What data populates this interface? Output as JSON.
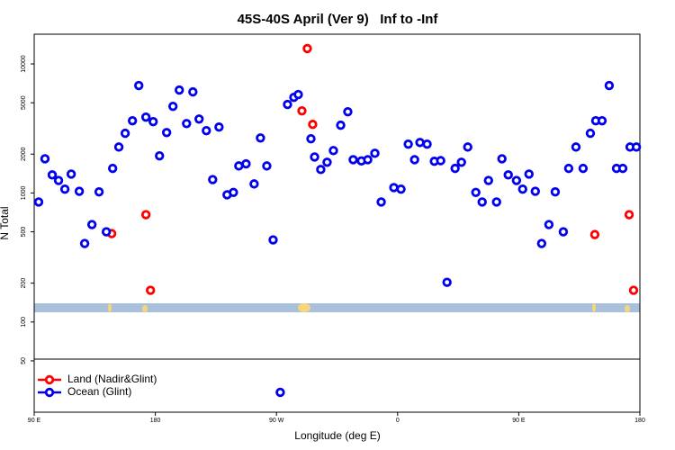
{
  "chart_data": {
    "type": "scatter",
    "title": "45S-40S April (Ver 9)   Inf to -Inf",
    "x_label": "Longitude (deg E)",
    "y_label": "N Total",
    "xlim": [
      90,
      540
    ],
    "xticks": [
      {
        "value": 90,
        "label": "90 E"
      },
      180,
      {
        "value": 270,
        "label": "90 W"
      },
      {
        "value": 360,
        "label": "0"
      },
      {
        "value": 450,
        "label": "90 E"
      },
      {
        "value": 540,
        "label": "180"
      }
    ],
    "ylim": [
      20,
      17000
    ],
    "log_y": true,
    "yticks": [
      50,
      100,
      200,
      500,
      1000,
      2000,
      5000,
      10000
    ],
    "legend": "lower left",
    "series": [
      {
        "name": "Land (Nadir&Glint)",
        "color": "#ff0000",
        "x": [
          147.6,
          173,
          176.4,
          288.9,
          292.9,
          296.9,
          506.5,
          532,
          535.3
        ],
        "values": [
          484,
          679,
          176,
          4330,
          13150,
          3400,
          476,
          679,
          176
        ]
      },
      {
        "name": "Ocean (Glint)",
        "color": "#0000ee",
        "x": [
          93.3,
          98,
          103.4,
          108.1,
          112.8,
          117.5,
          123.5,
          127.5,
          132.9,
          138.2,
          143.6,
          148.3,
          152.9,
          157.6,
          163,
          167.7,
          173,
          178.4,
          183.1,
          188.4,
          193.1,
          197.8,
          203.2,
          207.9,
          212.5,
          217.9,
          222.6,
          227.3,
          233.3,
          238,
          242,
          247.4,
          253.4,
          258.1,
          262.8,
          267.5,
          272.8,
          278.2,
          282.9,
          286.2,
          295.6,
          298.3,
          302.9,
          307.6,
          312.3,
          317.7,
          323,
          327,
          333.1,
          337.8,
          343.1,
          347.8,
          357.2,
          362.5,
          367.9,
          372.6,
          376.6,
          381.9,
          387.3,
          392,
          396.7,
          402.7,
          407.4,
          412.1,
          418.1,
          422.8,
          427.5,
          433.5,
          437.5,
          442.2,
          448.3,
          452.9,
          457.6,
          462.3,
          467,
          472.4,
          477.1,
          483.1,
          487.1,
          492.5,
          497.8,
          503.2,
          507.2,
          511.9,
          517.2,
          522.6,
          527.3,
          532.7,
          537.4
        ],
        "values": [
          851,
          1840,
          1380,
          1250,
          1070,
          1400,
          1030,
          406,
          569,
          1020,
          500,
          1550,
          2270,
          2900,
          3630,
          6800,
          3870,
          3570,
          1940,
          2940,
          4690,
          6270,
          3450,
          6070,
          3740,
          3040,
          1270,
          3240,
          968,
          1010,
          1620,
          1680,
          1175,
          2670,
          1620,
          433,
          28.5,
          4850,
          5510,
          5790,
          2630,
          1900,
          1520,
          1730,
          2130,
          3350,
          4260,
          1810,
          1770,
          1810,
          2030,
          851,
          1100,
          1070,
          2390,
          1810,
          2460,
          2390,
          1760,
          1780,
          203,
          1550,
          1730,
          2270,
          1010,
          851,
          1250,
          851,
          1840,
          1380,
          1250,
          1070,
          1400,
          1030,
          406,
          569,
          1020,
          500,
          1550,
          2270,
          1550,
          2900,
          3630,
          3630,
          6800,
          1550,
          1550,
          2270,
          2270
        ]
      }
    ]
  }
}
